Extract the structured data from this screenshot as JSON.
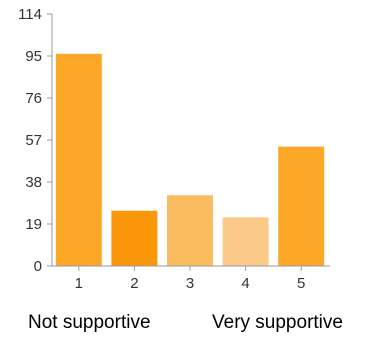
{
  "chart_data": {
    "type": "bar",
    "categories": [
      "1",
      "2",
      "3",
      "4",
      "5"
    ],
    "values": [
      96,
      25,
      32,
      22,
      54
    ],
    "colors": [
      "#fba728",
      "#f9960a",
      "#fbbb5f",
      "#fcca88",
      "#fba728"
    ],
    "ylim": [
      0,
      114
    ],
    "yticks": [
      0,
      19,
      38,
      57,
      76,
      95,
      114
    ],
    "grid": false,
    "title": "",
    "xlabel": "",
    "ylabel": ""
  },
  "scale_labels": {
    "low": "Not supportive",
    "high": "Very supportive"
  }
}
